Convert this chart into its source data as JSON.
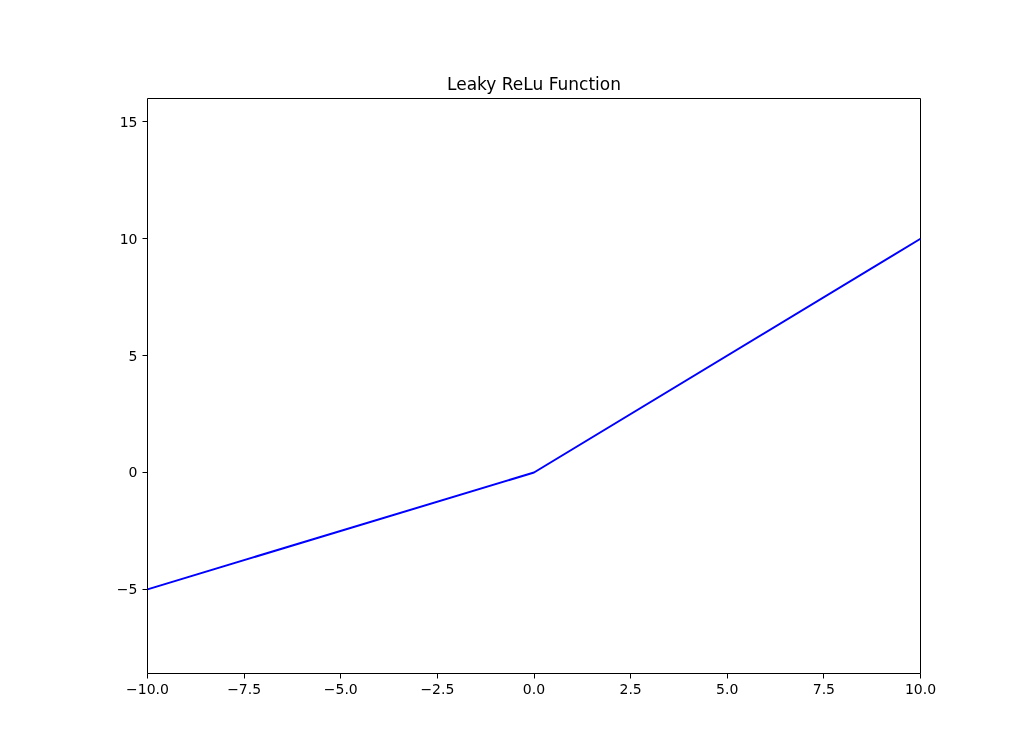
{
  "chart_data": {
    "type": "line",
    "title": "Leaky ReLu Function",
    "x": [
      -10,
      0,
      10
    ],
    "series": [
      {
        "color": "#0000ff",
        "values": [
          -5,
          0,
          10
        ]
      }
    ],
    "xlim": [
      -10,
      10
    ],
    "ylim": [
      -8.6,
      16
    ],
    "xticks": [
      {
        "value": -10,
        "label": "−10.0"
      },
      {
        "value": -7.5,
        "label": "−7.5"
      },
      {
        "value": -5,
        "label": "−5.0"
      },
      {
        "value": -2.5,
        "label": "−2.5"
      },
      {
        "value": 0,
        "label": "0.0"
      },
      {
        "value": 2.5,
        "label": "2.5"
      },
      {
        "value": 5,
        "label": "5.0"
      },
      {
        "value": 7.5,
        "label": "7.5"
      },
      {
        "value": 10,
        "label": "10.0"
      }
    ],
    "yticks": [
      {
        "value": -5,
        "label": "−5"
      },
      0,
      5,
      10,
      15
    ],
    "grid": false,
    "marker": "none",
    "line_style": "solid"
  }
}
